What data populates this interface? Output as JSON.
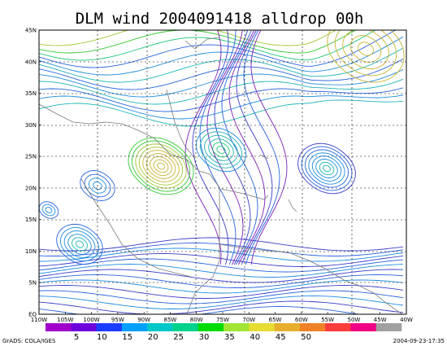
{
  "title": "DLM wind 2004091418 alldrop 00h",
  "lat_labels": [
    "45N",
    "40N",
    "35N",
    "30N",
    "25N",
    "20N",
    "15N",
    "10N",
    "5N",
    "EQ"
  ],
  "lon_labels": [
    "110W",
    "105W",
    "100W",
    "95W",
    "90W",
    "85W",
    "80W",
    "75W",
    "70W",
    "65W",
    "60W",
    "55W",
    "50W",
    "45W",
    "40W"
  ],
  "colorbar": {
    "ticks": [
      "5",
      "10",
      "15",
      "20",
      "25",
      "30",
      "35",
      "40",
      "45",
      "50"
    ],
    "colors": [
      "#a000c8",
      "#6e00dc",
      "#1e3cff",
      "#00a0ff",
      "#00c8c8",
      "#00d28c",
      "#00dc00",
      "#a0e632",
      "#e6dc32",
      "#e6af2d",
      "#f08228",
      "#fa3c3c",
      "#f00082",
      "#a0a0a0"
    ]
  },
  "footer_left": "GrADS: COLA/IGES",
  "footer_right": "2004-09-23-17:35"
}
